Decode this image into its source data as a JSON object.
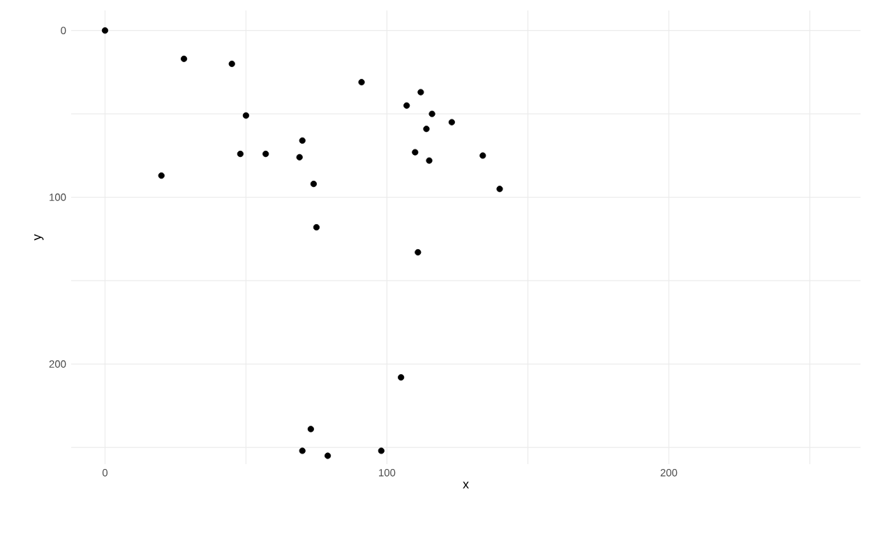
{
  "chart_data": {
    "type": "scatter",
    "xlabel": "x",
    "ylabel": "y",
    "color": "#000000",
    "marker": "circle",
    "grid": true,
    "xlim": [
      -12,
      268
    ],
    "ylim": [
      260,
      -12
    ],
    "xticks": [
      0,
      {
        "value": 50,
        "label": null
      },
      100,
      {
        "value": 150,
        "label": null
      },
      200,
      {
        "value": 250,
        "label": null
      }
    ],
    "yticks": [
      0,
      {
        "value": 50,
        "label": null
      },
      100,
      {
        "value": 150,
        "label": null
      },
      200,
      {
        "value": 250,
        "label": null
      }
    ],
    "x": [
      0,
      28,
      45,
      91,
      112,
      107,
      116,
      50,
      123,
      114,
      70,
      48,
      57,
      110,
      69,
      134,
      115,
      20,
      74,
      140,
      75,
      111,
      105,
      73,
      70,
      98,
      79
    ],
    "values": [
      0,
      17,
      20,
      31,
      37,
      45,
      50,
      51,
      55,
      59,
      66,
      74,
      74,
      73,
      76,
      75,
      78,
      87,
      92,
      95,
      118,
      133,
      208,
      239,
      252,
      252,
      255
    ]
  }
}
